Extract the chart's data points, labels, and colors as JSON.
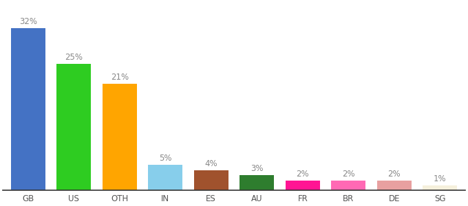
{
  "categories": [
    "GB",
    "US",
    "OTH",
    "IN",
    "ES",
    "AU",
    "FR",
    "BR",
    "DE",
    "SG"
  ],
  "values": [
    32,
    25,
    21,
    5,
    4,
    3,
    2,
    2,
    2,
    1
  ],
  "bar_colors": [
    "#4472C4",
    "#2ECC21",
    "#FFA500",
    "#87CEEB",
    "#A0522D",
    "#2E7D2E",
    "#FF1493",
    "#FF69B4",
    "#E8A0A0",
    "#F5F0DC"
  ],
  "xlabel_fontsize": 8.5,
  "value_label_fontsize": 8.5,
  "value_label_color": "#888888",
  "xlabel_color": "#555555",
  "background_color": "#ffffff",
  "ylim": [
    0,
    37
  ],
  "bar_width": 0.75,
  "figsize": [
    6.8,
    3.0
  ],
  "dpi": 100
}
